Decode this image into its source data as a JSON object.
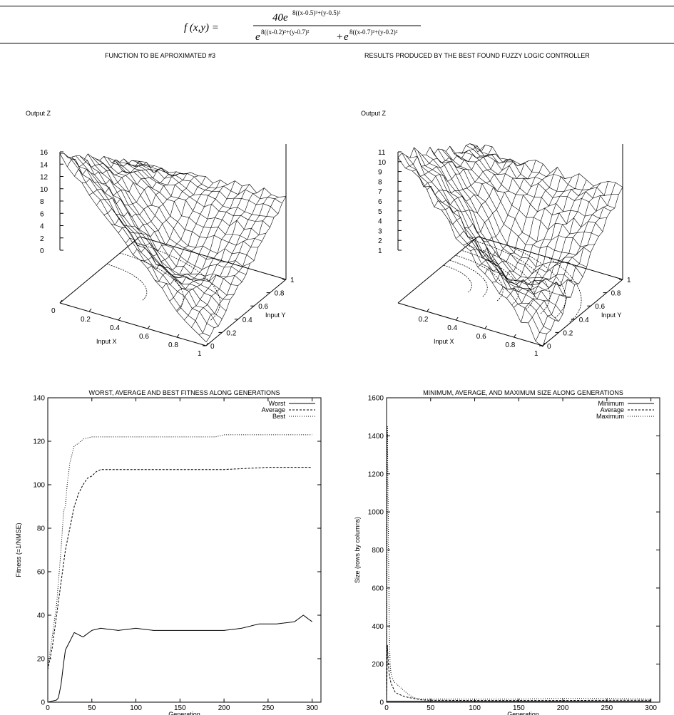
{
  "formula": {
    "lhs": "f (x,y) =",
    "numerator_coef": "40e",
    "numerator_exp": "8((x-0.5)²+(y-0.5)²",
    "den_e1": "e",
    "den_exp1": "8((x-0.2)²+(y-0.7)²",
    "den_plus": "+",
    "den_e2": "e",
    "den_exp2": "8((x-0.7)²+(y-0.2)²"
  },
  "captions": {
    "left": "FUNCTION TO BE APROXIMATED #3",
    "right": "RESULTS PRODUCED BY THE BEST FOUND FUZZY LOGIC CONTROLLER"
  },
  "chart_data": [
    {
      "type": "surface",
      "zlabel": "Output Z",
      "xlabel": "Input X",
      "ylabel": "Input Y",
      "z_ticks": [
        "16",
        "14",
        "12",
        "10",
        "8",
        "6",
        "4",
        "2",
        "0"
      ],
      "x_ticks": [
        "0",
        "0.2",
        "0.4",
        "0.6",
        "0.8",
        "1"
      ],
      "y_ticks": [
        "0",
        "0.2",
        "0.4",
        "0.6",
        "0.8",
        "1"
      ],
      "zlim": [
        0,
        16
      ],
      "corner_values": {
        "x0_y0": 16,
        "x1_y0": 0,
        "x0_y1": 8,
        "x1_y1": 9,
        "center": 4
      }
    },
    {
      "type": "surface",
      "zlabel": "Output Z",
      "xlabel": "Input X",
      "ylabel": "Input Y",
      "z_ticks": [
        "11",
        "10",
        "9",
        "8",
        "7",
        "6",
        "5",
        "4",
        "3",
        "2",
        "1"
      ],
      "x_ticks": [
        "0.2",
        "0.4",
        "0.6",
        "0.8",
        "1"
      ],
      "y_ticks": [
        "0",
        "0.2",
        "0.4",
        "0.6",
        "0.8",
        "1"
      ],
      "zlim": [
        1,
        11
      ],
      "corner_values": {
        "x0_y0": 11,
        "x1_y0": 1,
        "x0_y1": 7,
        "x1_y1": 7,
        "center": 3
      }
    },
    {
      "type": "line",
      "title": "WORST, AVERAGE AND BEST FITNESS ALONG GENERATIONS",
      "xlabel": "Generation",
      "ylabel": "Fitness (=1/NMSE)",
      "xlim": [
        0,
        310
      ],
      "ylim": [
        0,
        140
      ],
      "x_ticks": [
        "0",
        "50",
        "100",
        "150",
        "200",
        "250",
        "300"
      ],
      "y_ticks": [
        "0",
        "20",
        "40",
        "60",
        "80",
        "100",
        "120",
        "140"
      ],
      "legend_position": "top-right",
      "series": [
        {
          "name": "Worst",
          "style": "solid",
          "x": [
            0,
            10,
            12,
            15,
            18,
            20,
            25,
            30,
            40,
            50,
            60,
            80,
            100,
            120,
            150,
            180,
            200,
            220,
            240,
            260,
            280,
            290,
            300
          ],
          "values": [
            0,
            1,
            2,
            8,
            18,
            24,
            28,
            32,
            30,
            33,
            34,
            33,
            34,
            33,
            33,
            33,
            33,
            34,
            36,
            36,
            37,
            40,
            37
          ]
        },
        {
          "name": "Average",
          "style": "dashed",
          "x": [
            0,
            5,
            10,
            15,
            20,
            25,
            30,
            35,
            40,
            45,
            50,
            55,
            60,
            80,
            100,
            150,
            200,
            250,
            300
          ],
          "values": [
            15,
            25,
            40,
            55,
            70,
            80,
            90,
            96,
            100,
            103,
            104,
            106,
            107,
            107,
            107,
            107,
            107,
            108,
            108
          ]
        },
        {
          "name": "Best",
          "style": "dotted",
          "x": [
            0,
            5,
            10,
            15,
            18,
            20,
            22,
            25,
            30,
            35,
            40,
            50,
            60,
            100,
            190,
            200,
            300
          ],
          "values": [
            16,
            30,
            45,
            70,
            88,
            90,
            100,
            110,
            118,
            119,
            121,
            122,
            122,
            122,
            122,
            123,
            123
          ]
        }
      ]
    },
    {
      "type": "line",
      "title": "MINIMUM, AVERAGE, AND MAXIMUM SIZE ALONG GENERATIONS",
      "xlabel": "Generation",
      "ylabel": "Size (rows by columns)",
      "xlim": [
        0,
        310
      ],
      "ylim": [
        0,
        1600
      ],
      "x_ticks": [
        "0",
        "50",
        "100",
        "150",
        "200",
        "250",
        "300"
      ],
      "y_ticks": [
        "0",
        "200",
        "400",
        "600",
        "800",
        "1000",
        "1200",
        "1400",
        "1600"
      ],
      "legend_position": "top-right",
      "series": [
        {
          "name": "Minimum",
          "style": "solid",
          "x": [
            0,
            1,
            2,
            5,
            10,
            20,
            30,
            50,
            100,
            150,
            200,
            250,
            300
          ],
          "values": [
            0,
            4,
            4,
            4,
            4,
            4,
            4,
            4,
            4,
            4,
            4,
            4,
            4
          ]
        },
        {
          "name": "Average",
          "style": "dashed",
          "x": [
            0,
            1,
            2,
            3,
            5,
            8,
            10,
            15,
            20,
            25,
            30,
            40,
            50,
            100,
            150,
            200,
            250,
            300
          ],
          "values": [
            0,
            300,
            200,
            150,
            100,
            70,
            50,
            40,
            30,
            25,
            20,
            12,
            10,
            9,
            9,
            9,
            10,
            10
          ]
        },
        {
          "name": "Maximum",
          "style": "dotted",
          "x": [
            0,
            1,
            2,
            3,
            4,
            5,
            8,
            10,
            15,
            20,
            25,
            30,
            35,
            40,
            50,
            100,
            150,
            200,
            250,
            300
          ],
          "values": [
            0,
            1450,
            900,
            400,
            210,
            150,
            110,
            100,
            80,
            60,
            40,
            25,
            20,
            16,
            16,
            16,
            16,
            20,
            20,
            16
          ]
        }
      ]
    }
  ]
}
